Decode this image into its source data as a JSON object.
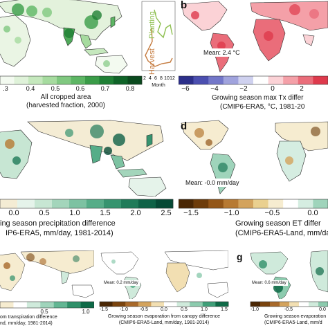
{
  "panels": {
    "a": {
      "letter": "",
      "colorbar": {
        "ticks": [
          ".3",
          "0.4",
          "0.5",
          "0.6",
          "0.7",
          "0.8"
        ],
        "colors": [
          "#f3faf0",
          "#dff2d9",
          "#c5e8bd",
          "#a6db9f",
          "#80c880",
          "#5db664",
          "#3a9c48",
          "#1f7f35",
          "#0f6328",
          "#0a4a1e"
        ],
        "label_line1": "All cropped area",
        "label_line2": "(harvested fraction, 2000)"
      },
      "inset": {
        "planting_label": "Planting",
        "harvest_label": "Harvest",
        "ticks": [
          "2",
          "4",
          "6",
          "8",
          "10",
          "12"
        ],
        "xlabel": "Month",
        "planting_color": "#8dbf4f",
        "harvest_color": "#c57b3f"
      }
    },
    "b": {
      "letter": "b",
      "mean": "Mean: 2.4 °C",
      "colorbar": {
        "ticks": [
          "−6",
          "−4",
          "−2",
          "0",
          "2"
        ],
        "colors": [
          "#2c2f8a",
          "#4b4fb0",
          "#7377c9",
          "#a0a3dd",
          "#cfd1ef",
          "#ffffff",
          "#fbd2d6",
          "#f4a0a8",
          "#ea6d7a",
          "#de3a4c"
        ],
        "label_line1": "Growing season max Tx differ",
        "label_line2": "(CMIP6-ERA5, °C, 1981-20"
      }
    },
    "c": {
      "letter": "",
      "colorbar": {
        "ticks": [
          "0.0",
          "0.5",
          "1.0",
          "1.5",
          "2.0",
          "2.5"
        ],
        "colors": [
          "#f4ecd4",
          "#e5f3ea",
          "#c7e6d3",
          "#a3d5bb",
          "#7dc2a2",
          "#56ad88",
          "#36946f",
          "#1f7b59",
          "#0f6247",
          "#064a36"
        ],
        "label_line1": "ing season precipitation difference",
        "label_line2": "IP6-ERA5, mm/day, 1981-2014)"
      }
    },
    "d": {
      "letter": "d",
      "mean": "Mean: -0.0 mm/day",
      "colorbar": {
        "ticks": [
          "−1.5",
          "−1.0",
          "−0.5",
          "0.0"
        ],
        "colors": [
          "#4a2704",
          "#6d3c0a",
          "#935618",
          "#b77a33",
          "#d3a35d",
          "#ead08f",
          "#f6ecd0",
          "#ffffff",
          "#d5ede1",
          "#9fd4bb"
        ],
        "label_line1": "Growing season ET differ",
        "label_line2": "(CMIP6-ERA5-Land, mm/day, 19"
      }
    },
    "e": {
      "letter": "",
      "colorbar": {
        "ticks": [
          "0.5",
          "1.0"
        ],
        "colors": [
          "#f6ecd0",
          "#ffffff",
          "#cfeadb",
          "#9fd4bb",
          "#63b693",
          "#2f9069",
          "#0e6a47"
        ],
        "label_line1": "om transpiration difference",
        "label_line2": "nd, mm/day, 1981-2014)"
      }
    },
    "f": {
      "letter": "f",
      "mean": "Mean: 0.2 mm/day",
      "colorbar": {
        "ticks": [
          "-1.5",
          "-1.0",
          "-0.5",
          "0.0",
          "0.5",
          "1.0",
          "1.5"
        ],
        "colors": [
          "#4a2704",
          "#7a440e",
          "#a8692a",
          "#d3a35d",
          "#f2dfb2",
          "#ffffff",
          "#cfeadb",
          "#8ccbae",
          "#3f9f78",
          "#0e6a47"
        ],
        "label_line1": "Growing season evaporation from canopy difference",
        "label_line2": "(CMIP6-ERA5-Land, mm/day, 1981-2014)"
      }
    },
    "g": {
      "letter": "g",
      "mean": "Mean: 0.6 mm/day",
      "colorbar": {
        "ticks": [
          "-1.0",
          "-0.5",
          "0.0"
        ],
        "colors": [
          "#4a2704",
          "#7a440e",
          "#a8692a",
          "#d3a35d",
          "#f2dfb2",
          "#ffffff",
          "#cfeadb",
          "#8ccbae"
        ],
        "label_line1": "Growing season evaporation",
        "label_line2": "(CMIP6-ERA5-Land, mm/d"
      }
    }
  }
}
